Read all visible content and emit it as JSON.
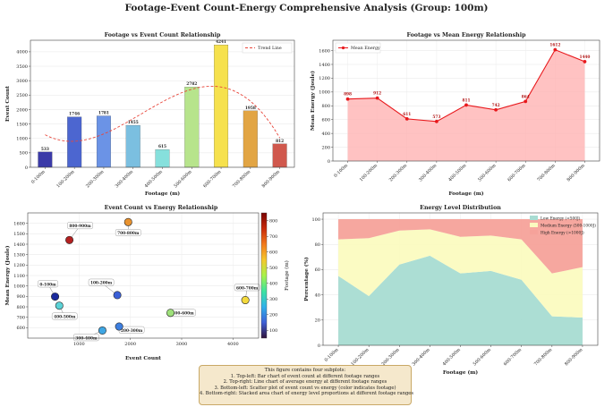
{
  "suptitle": "Footage-Event Count-Energy Comprehensive Analysis (Group: 100m)",
  "categories": [
    "0-100m",
    "100-200m",
    "200-300m",
    "300-400m",
    "400-500m",
    "500-600m",
    "600-700m",
    "700-800m",
    "800-900m"
  ],
  "caption_lines": [
    "This figure contains four subplots:",
    "1. Top-left: Bar chart of event count at different footage ranges",
    "2. Top-right: Line chart of average energy at different footage ranges",
    "3. Bottom-left: Scatter plot of event count vs energy (color indicates footage)",
    "4. Bottom-right: Stacked area chart of energy level proportions at different footage ranges"
  ],
  "chart_data": [
    {
      "type": "bar",
      "title": "Footage vs Event Count Relationship",
      "xlabel": "Footage (m)",
      "ylabel": "Event Count",
      "categories": [
        "0-100m",
        "100-200m",
        "200-300m",
        "300-400m",
        "400-500m",
        "500-600m",
        "600-700m",
        "700-800m",
        "800-900m"
      ],
      "values": [
        533,
        1746,
        1781,
        1455,
        615,
        2782,
        4241,
        1958,
        812
      ],
      "bar_colors": [
        "#3b3aa8",
        "#4c66d0",
        "#6b93e6",
        "#7bbfe0",
        "#86e0dc",
        "#b7e48c",
        "#f6e14d",
        "#e2a544",
        "#d0584d"
      ],
      "trend_label": "Trend Line",
      "trend_color": "#e8473c",
      "legend": "top-right",
      "ylim": [
        0,
        4400
      ],
      "yticks": [
        0,
        500,
        1000,
        1500,
        2000,
        2500,
        3000,
        3500,
        4000
      ],
      "grid": true
    },
    {
      "type": "area",
      "title": "Footage vs Mean Energy Relationship",
      "xlabel": "Footage (m)",
      "ylabel": "Mean Energy (Joule)",
      "categories": [
        "0-100m",
        "100-200m",
        "200-300m",
        "300-400m",
        "400-500m",
        "500-600m",
        "600-700m",
        "700-800m",
        "800-900m"
      ],
      "series": [
        {
          "name": "Mean Energy",
          "values": [
            898,
            912,
            611,
            573,
            811,
            742,
            864,
            1612,
            1440
          ],
          "labels": [
            "898",
            "912",
            "611",
            "573",
            "811",
            "742",
            "864",
            "1612",
            "1440"
          ],
          "color": "#e8181c"
        }
      ],
      "legend": "top-left",
      "ylim": [
        0,
        1750
      ],
      "yticks": [
        0,
        200,
        400,
        600,
        800,
        1000,
        1200,
        1400,
        1600
      ],
      "grid": true
    },
    {
      "type": "scatter",
      "title": "Event Count vs Energy Relationship",
      "xlabel": "Event Count",
      "ylabel": "Mean Energy (Joule)",
      "colorbar_label": "Footage (m)",
      "colorbar_ticks": [
        100,
        200,
        300,
        400,
        500,
        600,
        700,
        800
      ],
      "xlim": [
        0,
        4500
      ],
      "ylim": [
        500,
        1700
      ],
      "xticks": [
        1000,
        2000,
        3000,
        4000
      ],
      "yticks": [
        600,
        700,
        800,
        900,
        1000,
        1100,
        1200,
        1300,
        1400,
        1500,
        1600
      ],
      "points": [
        {
          "label": "0-100m",
          "x": 533,
          "y": 898,
          "color": "#1b2a9c"
        },
        {
          "label": "100-200m",
          "x": 1746,
          "y": 912,
          "color": "#3a5fd6"
        },
        {
          "label": "200-300m",
          "x": 1781,
          "y": 611,
          "color": "#3d7fe0"
        },
        {
          "label": "300-400m",
          "x": 1455,
          "y": 573,
          "color": "#3fa6e3"
        },
        {
          "label": "400-500m",
          "x": 615,
          "y": 811,
          "color": "#5bd2d6"
        },
        {
          "label": "500-600m",
          "x": 2782,
          "y": 742,
          "color": "#9ee07a"
        },
        {
          "label": "600-700m",
          "x": 4241,
          "y": 864,
          "color": "#f3d93c"
        },
        {
          "label": "700-800m",
          "x": 1958,
          "y": 1612,
          "color": "#e8922f"
        },
        {
          "label": "800-900m",
          "x": 812,
          "y": 1440,
          "color": "#b32020"
        }
      ],
      "grid": true
    },
    {
      "type": "area",
      "title": "Energy Level Distribution",
      "xlabel": "Footage (m)",
      "ylabel": "Percentage (%)",
      "categories": [
        "0-100m",
        "100-200m",
        "200-300m",
        "300-400m",
        "400-500m",
        "500-600m",
        "600-700m",
        "700-800m",
        "800-900m"
      ],
      "series": [
        {
          "name": "Low Energy (<500J)",
          "values": [
            55,
            39,
            64,
            71,
            57,
            59,
            52,
            23,
            22
          ],
          "color": "#a8dcd2"
        },
        {
          "name": "Medium Energy (500-1000J)",
          "values": [
            29,
            46,
            27,
            21,
            29,
            28,
            32,
            34,
            40
          ],
          "color": "#fbfbc0"
        },
        {
          "name": "High Energy (>1000J)",
          "values": [
            16,
            15,
            9,
            8,
            14,
            13,
            16,
            43,
            38
          ],
          "color": "#f6a29a"
        }
      ],
      "stacked": true,
      "legend": "top-right",
      "ylim": [
        0,
        105
      ],
      "yticks": [
        0,
        20,
        40,
        60,
        80,
        100
      ],
      "grid": true
    }
  ]
}
